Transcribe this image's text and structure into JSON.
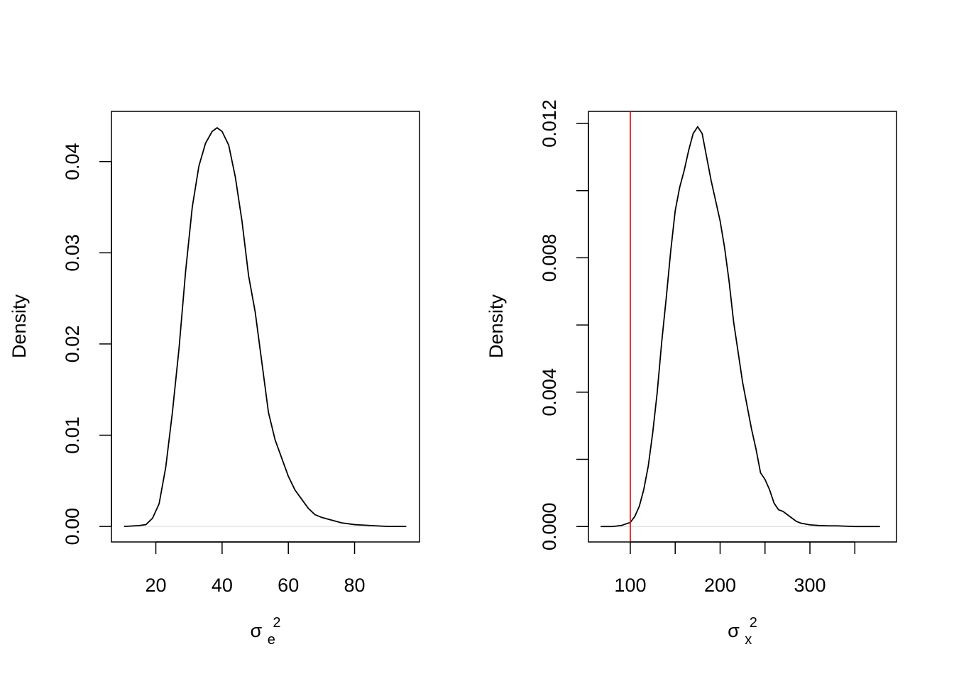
{
  "chart_data": [
    {
      "type": "line",
      "xlabel": "σ",
      "xlabel_sub": "e",
      "xlabel_sup": "2",
      "ylabel": "Density",
      "xlim": [
        6.6,
        99.6
      ],
      "ylim": [
        -0.0017,
        0.0455
      ],
      "x_ticks": [
        20,
        40,
        60,
        80
      ],
      "x_tick_labels": [
        "20",
        "40",
        "60",
        "80"
      ],
      "y_ticks": [
        0.0,
        0.01,
        0.02,
        0.03,
        0.04
      ],
      "y_tick_labels": [
        "0.00",
        "0.01",
        "0.02",
        "0.03",
        "0.04"
      ],
      "baseline": 0,
      "series": [
        {
          "color": "#000000",
          "x": [
            10.4,
            15.0,
            17.0,
            19.0,
            21.0,
            23.0,
            25.0,
            27.0,
            29.0,
            31.0,
            33.0,
            35.0,
            37.0,
            38.5,
            40.0,
            42.0,
            44.0,
            46.0,
            48.0,
            50.0,
            52.0,
            54.0,
            56.0,
            58.0,
            60.0,
            62.0,
            64.0,
            66.0,
            68.0,
            70.0,
            72.0,
            74.0,
            76.0,
            80.0,
            85.0,
            90.0,
            95.6
          ],
          "y": [
            0.0,
            0.0001,
            0.0002,
            0.0009,
            0.0025,
            0.0065,
            0.0125,
            0.0195,
            0.028,
            0.035,
            0.0395,
            0.042,
            0.0433,
            0.0437,
            0.0433,
            0.0418,
            0.0383,
            0.0335,
            0.0275,
            0.0235,
            0.018,
            0.0125,
            0.0095,
            0.0075,
            0.0055,
            0.004,
            0.003,
            0.002,
            0.0013,
            0.001,
            0.0008,
            0.0006,
            0.0004,
            0.0002,
            0.0001,
            0.0,
            0.0
          ]
        }
      ],
      "vline": null
    },
    {
      "type": "line",
      "xlabel": "σ",
      "xlabel_sub": "x",
      "xlabel_sup": "2",
      "ylabel": "Density",
      "xlim": [
        53.4,
        396.4
      ],
      "ylim": [
        -0.00046,
        0.01236
      ],
      "x_ticks": [
        100,
        150,
        200,
        250,
        300,
        350
      ],
      "x_tick_labels": [
        "100",
        "",
        "200",
        "",
        "300",
        ""
      ],
      "y_ticks": [
        0.0,
        0.002,
        0.004,
        0.006,
        0.008,
        0.01,
        0.012
      ],
      "y_tick_labels": [
        "0.000",
        "",
        "0.004",
        "",
        "0.008",
        "",
        "0.012"
      ],
      "baseline": 0,
      "series": [
        {
          "color": "#000000",
          "x": [
            67.0,
            80.0,
            90.0,
            100.0,
            105.0,
            110.0,
            115.0,
            120.0,
            125.0,
            130.0,
            135.0,
            140.0,
            145.0,
            150.0,
            155.0,
            160.0,
            165.0,
            170.0,
            175.0,
            180.0,
            185.0,
            190.0,
            195.0,
            200.0,
            205.0,
            210.0,
            215.0,
            220.0,
            225.0,
            230.0,
            235.0,
            240.0,
            245.0,
            250.0,
            255.0,
            260.0,
            265.0,
            270.0,
            275.0,
            280.0,
            285.0,
            290.0,
            300.0,
            310.0,
            320.0,
            330.0,
            340.0,
            350.0,
            360.0,
            370.0,
            378.0
          ],
          "y": [
            0.0,
            0.0,
            3e-05,
            0.00012,
            0.0003,
            0.0006,
            0.0011,
            0.0018,
            0.0028,
            0.004,
            0.0055,
            0.0068,
            0.0082,
            0.0094,
            0.0101,
            0.0106,
            0.0112,
            0.0117,
            0.0119,
            0.0117,
            0.011,
            0.0103,
            0.0097,
            0.0091,
            0.0083,
            0.0073,
            0.0061,
            0.0052,
            0.0043,
            0.0036,
            0.0029,
            0.0023,
            0.0016,
            0.0014,
            0.0011,
            0.0007,
            0.0005,
            0.00045,
            0.00035,
            0.00025,
            0.00015,
            0.0001,
            5e-05,
            3e-05,
            2e-05,
            2e-05,
            1e-05,
            0.0,
            0.0,
            0.0,
            0.0
          ]
        }
      ],
      "vline": {
        "x": 100,
        "color": "#e31a1c"
      }
    }
  ]
}
